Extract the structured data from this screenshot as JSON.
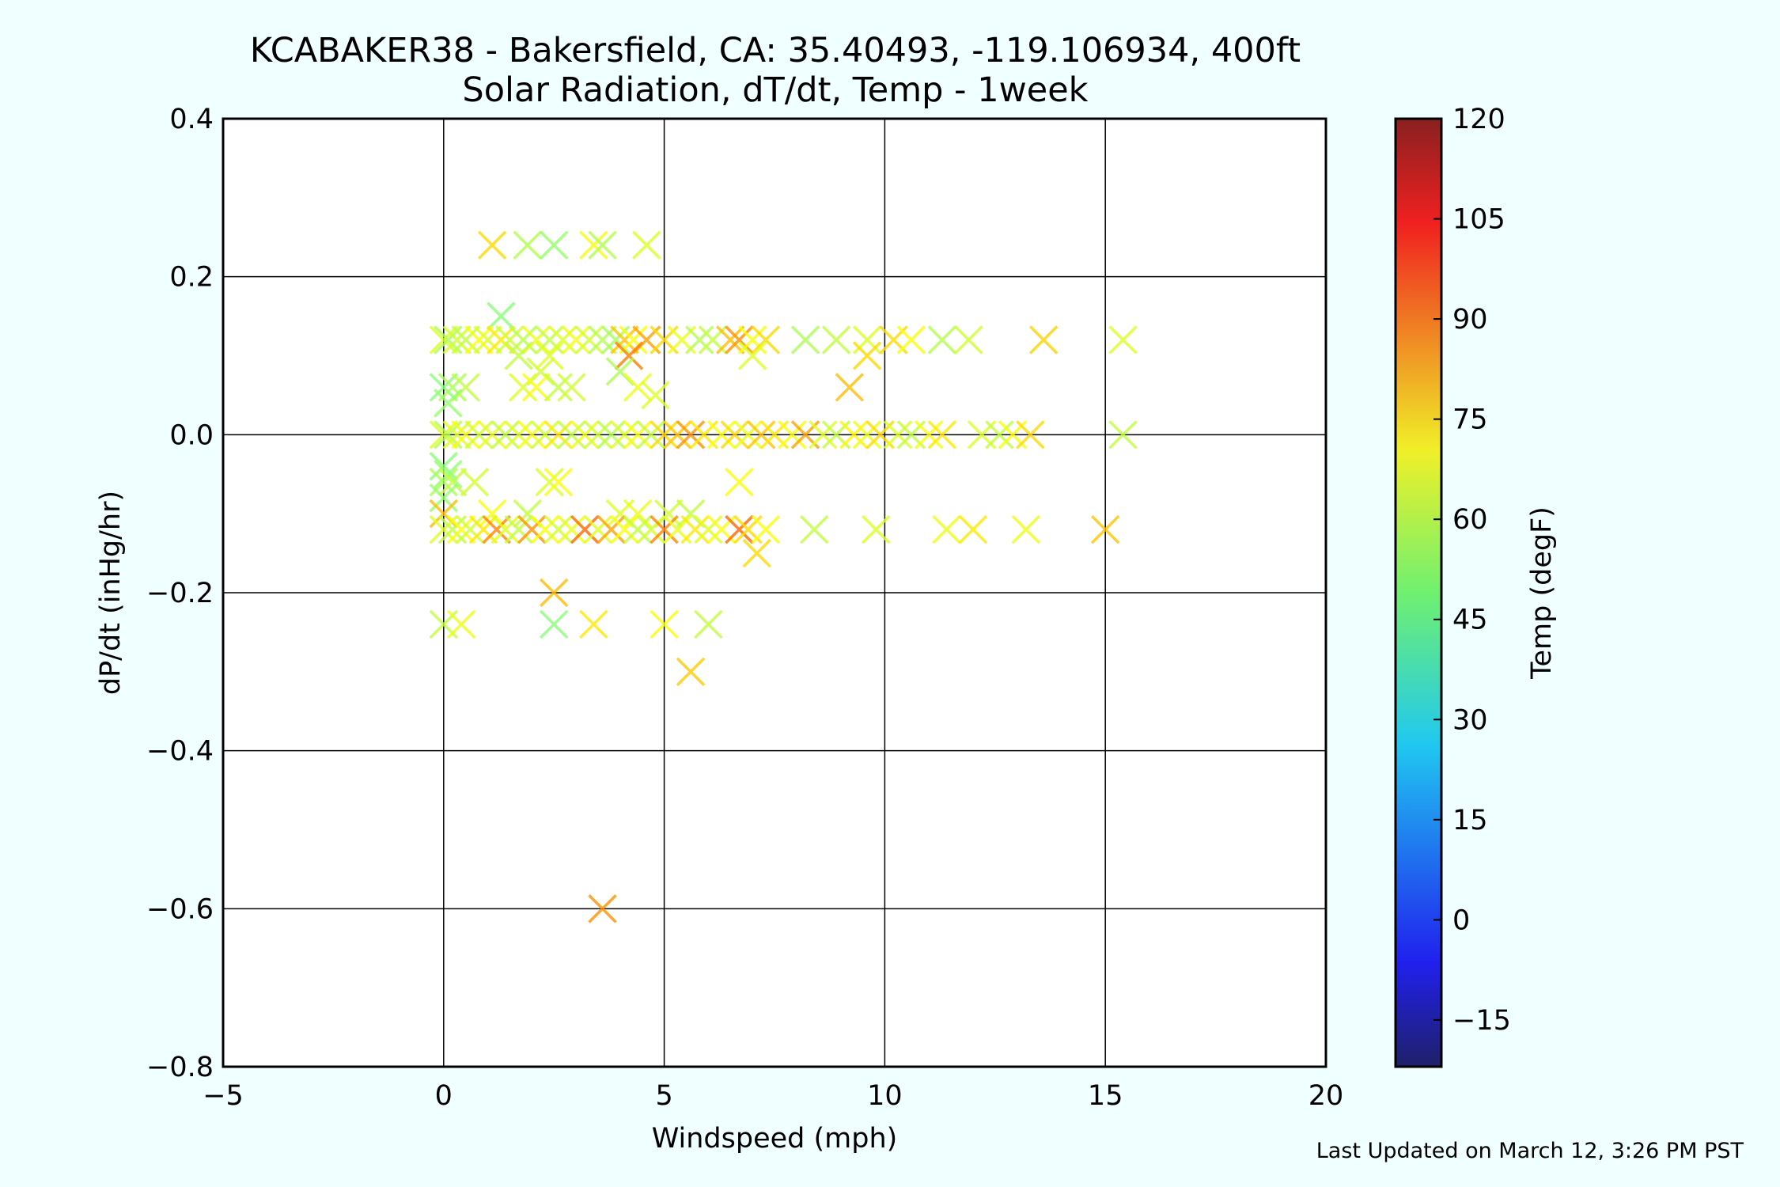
{
  "chart_data": {
    "type": "scatter",
    "title": "KCABAKER38 - Bakersfield, CA: 35.40493, -119.106934, 400ft",
    "subtitle": "Solar Radiation, dT/dt, Temp - 1week",
    "xlabel": "Windspeed (mph)",
    "ylabel": "dP/dt (inHg/hr)",
    "xlim": [
      -5,
      20
    ],
    "ylim": [
      -0.8,
      0.4
    ],
    "xticks": [
      "−5",
      "0",
      "5",
      "10",
      "15",
      "20"
    ],
    "yticks": [
      "0.4",
      "0.2",
      "0.0",
      "−0.2",
      "−0.4",
      "−0.6",
      "−0.8"
    ],
    "grid": true,
    "marker": "x",
    "colorbar": {
      "label": "Temp (degF)",
      "range": [
        -22,
        120
      ],
      "ticks": [
        "120",
        "105",
        "90",
        "75",
        "60",
        "45",
        "30",
        "15",
        "0",
        "−15"
      ],
      "colormap": "jet"
    },
    "points": [
      {
        "x": 1.1,
        "y": 0.24,
        "t": 72
      },
      {
        "x": 1.9,
        "y": 0.24,
        "t": 56
      },
      {
        "x": 2.5,
        "y": 0.24,
        "t": 52
      },
      {
        "x": 3.4,
        "y": 0.24,
        "t": 65
      },
      {
        "x": 3.6,
        "y": 0.24,
        "t": 56
      },
      {
        "x": 4.6,
        "y": 0.24,
        "t": 62
      },
      {
        "x": 1.3,
        "y": 0.15,
        "t": 50
      },
      {
        "x": 0.0,
        "y": 0.12,
        "t": 62
      },
      {
        "x": 0.1,
        "y": 0.12,
        "t": 55
      },
      {
        "x": 0.3,
        "y": 0.12,
        "t": 60
      },
      {
        "x": 0.5,
        "y": 0.12,
        "t": 58
      },
      {
        "x": 0.8,
        "y": 0.12,
        "t": 66
      },
      {
        "x": 1.0,
        "y": 0.12,
        "t": 62
      },
      {
        "x": 1.3,
        "y": 0.12,
        "t": 70
      },
      {
        "x": 1.5,
        "y": 0.12,
        "t": 60
      },
      {
        "x": 1.8,
        "y": 0.12,
        "t": 57
      },
      {
        "x": 2.1,
        "y": 0.12,
        "t": 64
      },
      {
        "x": 2.4,
        "y": 0.12,
        "t": 58
      },
      {
        "x": 2.7,
        "y": 0.12,
        "t": 62
      },
      {
        "x": 3.0,
        "y": 0.12,
        "t": 65
      },
      {
        "x": 3.3,
        "y": 0.12,
        "t": 60
      },
      {
        "x": 3.6,
        "y": 0.12,
        "t": 56
      },
      {
        "x": 3.9,
        "y": 0.12,
        "t": 54
      },
      {
        "x": 4.1,
        "y": 0.12,
        "t": 75
      },
      {
        "x": 4.3,
        "y": 0.12,
        "t": 66
      },
      {
        "x": 4.6,
        "y": 0.12,
        "t": 80
      },
      {
        "x": 5.0,
        "y": 0.12,
        "t": 72
      },
      {
        "x": 5.4,
        "y": 0.12,
        "t": 64
      },
      {
        "x": 5.8,
        "y": 0.12,
        "t": 56
      },
      {
        "x": 6.1,
        "y": 0.12,
        "t": 58
      },
      {
        "x": 6.5,
        "y": 0.12,
        "t": 76
      },
      {
        "x": 6.7,
        "y": 0.12,
        "t": 82
      },
      {
        "x": 7.0,
        "y": 0.12,
        "t": 66
      },
      {
        "x": 7.3,
        "y": 0.12,
        "t": 72
      },
      {
        "x": 8.2,
        "y": 0.12,
        "t": 55
      },
      {
        "x": 8.9,
        "y": 0.12,
        "t": 58
      },
      {
        "x": 9.6,
        "y": 0.12,
        "t": 62
      },
      {
        "x": 10.2,
        "y": 0.12,
        "t": 72
      },
      {
        "x": 10.6,
        "y": 0.12,
        "t": 66
      },
      {
        "x": 11.3,
        "y": 0.12,
        "t": 56
      },
      {
        "x": 11.9,
        "y": 0.12,
        "t": 60
      },
      {
        "x": 13.6,
        "y": 0.12,
        "t": 73
      },
      {
        "x": 15.4,
        "y": 0.12,
        "t": 62
      },
      {
        "x": 1.7,
        "y": 0.1,
        "t": 58
      },
      {
        "x": 2.4,
        "y": 0.1,
        "t": 62
      },
      {
        "x": 4.2,
        "y": 0.1,
        "t": 85
      },
      {
        "x": 7.0,
        "y": 0.1,
        "t": 62
      },
      {
        "x": 9.6,
        "y": 0.1,
        "t": 72
      },
      {
        "x": 4.0,
        "y": 0.08,
        "t": 55
      },
      {
        "x": 2.2,
        "y": 0.08,
        "t": 60
      },
      {
        "x": 0.0,
        "y": 0.06,
        "t": 50
      },
      {
        "x": 0.2,
        "y": 0.06,
        "t": 55
      },
      {
        "x": 0.5,
        "y": 0.06,
        "t": 58
      },
      {
        "x": 1.8,
        "y": 0.06,
        "t": 62
      },
      {
        "x": 2.1,
        "y": 0.06,
        "t": 66
      },
      {
        "x": 2.6,
        "y": 0.06,
        "t": 58
      },
      {
        "x": 2.9,
        "y": 0.06,
        "t": 60
      },
      {
        "x": 4.4,
        "y": 0.06,
        "t": 64
      },
      {
        "x": 9.2,
        "y": 0.06,
        "t": 76
      },
      {
        "x": 4.8,
        "y": 0.05,
        "t": 62
      },
      {
        "x": 0.1,
        "y": 0.04,
        "t": 52
      },
      {
        "x": 0.0,
        "y": 0.0,
        "t": 62
      },
      {
        "x": 0.1,
        "y": 0.0,
        "t": 56
      },
      {
        "x": 0.3,
        "y": 0.0,
        "t": 62
      },
      {
        "x": 0.5,
        "y": 0.0,
        "t": 66
      },
      {
        "x": 0.8,
        "y": 0.0,
        "t": 60
      },
      {
        "x": 1.1,
        "y": 0.0,
        "t": 64
      },
      {
        "x": 1.4,
        "y": 0.0,
        "t": 58
      },
      {
        "x": 1.7,
        "y": 0.0,
        "t": 62
      },
      {
        "x": 2.0,
        "y": 0.0,
        "t": 66
      },
      {
        "x": 2.3,
        "y": 0.0,
        "t": 60
      },
      {
        "x": 2.6,
        "y": 0.0,
        "t": 70
      },
      {
        "x": 2.9,
        "y": 0.0,
        "t": 58
      },
      {
        "x": 3.2,
        "y": 0.0,
        "t": 64
      },
      {
        "x": 3.5,
        "y": 0.0,
        "t": 60
      },
      {
        "x": 3.8,
        "y": 0.0,
        "t": 56
      },
      {
        "x": 4.1,
        "y": 0.0,
        "t": 62
      },
      {
        "x": 4.4,
        "y": 0.0,
        "t": 66
      },
      {
        "x": 4.7,
        "y": 0.0,
        "t": 58
      },
      {
        "x": 5.0,
        "y": 0.0,
        "t": 72
      },
      {
        "x": 5.3,
        "y": 0.0,
        "t": 75
      },
      {
        "x": 5.6,
        "y": 0.0,
        "t": 82
      },
      {
        "x": 5.9,
        "y": 0.0,
        "t": 70
      },
      {
        "x": 6.3,
        "y": 0.0,
        "t": 66
      },
      {
        "x": 6.6,
        "y": 0.0,
        "t": 72
      },
      {
        "x": 6.9,
        "y": 0.0,
        "t": 64
      },
      {
        "x": 7.2,
        "y": 0.0,
        "t": 75
      },
      {
        "x": 7.5,
        "y": 0.0,
        "t": 70
      },
      {
        "x": 7.9,
        "y": 0.0,
        "t": 66
      },
      {
        "x": 8.2,
        "y": 0.0,
        "t": 80
      },
      {
        "x": 8.6,
        "y": 0.0,
        "t": 62
      },
      {
        "x": 8.9,
        "y": 0.0,
        "t": 58
      },
      {
        "x": 9.3,
        "y": 0.0,
        "t": 68
      },
      {
        "x": 9.6,
        "y": 0.0,
        "t": 64
      },
      {
        "x": 9.9,
        "y": 0.0,
        "t": 72
      },
      {
        "x": 10.3,
        "y": 0.0,
        "t": 62
      },
      {
        "x": 10.6,
        "y": 0.0,
        "t": 58
      },
      {
        "x": 11.0,
        "y": 0.0,
        "t": 66
      },
      {
        "x": 11.3,
        "y": 0.0,
        "t": 70
      },
      {
        "x": 12.2,
        "y": 0.0,
        "t": 62
      },
      {
        "x": 12.6,
        "y": 0.0,
        "t": 58
      },
      {
        "x": 12.9,
        "y": 0.0,
        "t": 66
      },
      {
        "x": 13.3,
        "y": 0.0,
        "t": 72
      },
      {
        "x": 15.4,
        "y": 0.0,
        "t": 58
      },
      {
        "x": 0.0,
        "y": -0.04,
        "t": 50
      },
      {
        "x": 0.1,
        "y": -0.05,
        "t": 52
      },
      {
        "x": 0.0,
        "y": -0.06,
        "t": 55
      },
      {
        "x": 0.2,
        "y": -0.06,
        "t": 58
      },
      {
        "x": 0.7,
        "y": -0.06,
        "t": 60
      },
      {
        "x": 2.4,
        "y": -0.06,
        "t": 62
      },
      {
        "x": 2.6,
        "y": -0.06,
        "t": 66
      },
      {
        "x": 6.7,
        "y": -0.06,
        "t": 66
      },
      {
        "x": 0.0,
        "y": -0.08,
        "t": 52
      },
      {
        "x": 0.0,
        "y": -0.1,
        "t": 76
      },
      {
        "x": 1.1,
        "y": -0.1,
        "t": 66
      },
      {
        "x": 1.9,
        "y": -0.1,
        "t": 58
      },
      {
        "x": 4.0,
        "y": -0.1,
        "t": 62
      },
      {
        "x": 4.4,
        "y": -0.1,
        "t": 64
      },
      {
        "x": 5.1,
        "y": -0.1,
        "t": 60
      },
      {
        "x": 5.6,
        "y": -0.1,
        "t": 58
      },
      {
        "x": 0.0,
        "y": -0.12,
        "t": 62
      },
      {
        "x": 0.2,
        "y": -0.12,
        "t": 58
      },
      {
        "x": 0.4,
        "y": -0.12,
        "t": 66
      },
      {
        "x": 0.6,
        "y": -0.12,
        "t": 60
      },
      {
        "x": 0.9,
        "y": -0.12,
        "t": 70
      },
      {
        "x": 1.2,
        "y": -0.12,
        "t": 84
      },
      {
        "x": 1.4,
        "y": -0.12,
        "t": 62
      },
      {
        "x": 1.7,
        "y": -0.12,
        "t": 58
      },
      {
        "x": 2.0,
        "y": -0.12,
        "t": 82
      },
      {
        "x": 2.3,
        "y": -0.12,
        "t": 66
      },
      {
        "x": 2.6,
        "y": -0.12,
        "t": 60
      },
      {
        "x": 2.9,
        "y": -0.12,
        "t": 64
      },
      {
        "x": 3.2,
        "y": -0.12,
        "t": 88
      },
      {
        "x": 3.5,
        "y": -0.12,
        "t": 62
      },
      {
        "x": 3.8,
        "y": -0.12,
        "t": 80
      },
      {
        "x": 4.1,
        "y": -0.12,
        "t": 66
      },
      {
        "x": 4.4,
        "y": -0.12,
        "t": 58
      },
      {
        "x": 4.7,
        "y": -0.12,
        "t": 60
      },
      {
        "x": 5.0,
        "y": -0.12,
        "t": 84
      },
      {
        "x": 5.3,
        "y": -0.12,
        "t": 64
      },
      {
        "x": 5.7,
        "y": -0.12,
        "t": 70
      },
      {
        "x": 6.0,
        "y": -0.12,
        "t": 62
      },
      {
        "x": 6.3,
        "y": -0.12,
        "t": 66
      },
      {
        "x": 6.7,
        "y": -0.12,
        "t": 88
      },
      {
        "x": 6.9,
        "y": -0.12,
        "t": 72
      },
      {
        "x": 7.3,
        "y": -0.12,
        "t": 66
      },
      {
        "x": 8.4,
        "y": -0.12,
        "t": 58
      },
      {
        "x": 9.8,
        "y": -0.12,
        "t": 62
      },
      {
        "x": 11.4,
        "y": -0.12,
        "t": 64
      },
      {
        "x": 12.0,
        "y": -0.12,
        "t": 70
      },
      {
        "x": 13.2,
        "y": -0.12,
        "t": 64
      },
      {
        "x": 15.0,
        "y": -0.12,
        "t": 75
      },
      {
        "x": 7.1,
        "y": -0.15,
        "t": 72
      },
      {
        "x": 2.5,
        "y": -0.2,
        "t": 76
      },
      {
        "x": 0.0,
        "y": -0.24,
        "t": 58
      },
      {
        "x": 0.4,
        "y": -0.24,
        "t": 64
      },
      {
        "x": 2.5,
        "y": -0.24,
        "t": 50
      },
      {
        "x": 3.4,
        "y": -0.24,
        "t": 70
      },
      {
        "x": 5.0,
        "y": -0.24,
        "t": 66
      },
      {
        "x": 6.0,
        "y": -0.24,
        "t": 58
      },
      {
        "x": 5.6,
        "y": -0.3,
        "t": 74
      },
      {
        "x": 3.6,
        "y": -0.6,
        "t": 82
      }
    ]
  },
  "footer": {
    "updated": "Last Updated on March 12, 3:26 PM PST"
  }
}
